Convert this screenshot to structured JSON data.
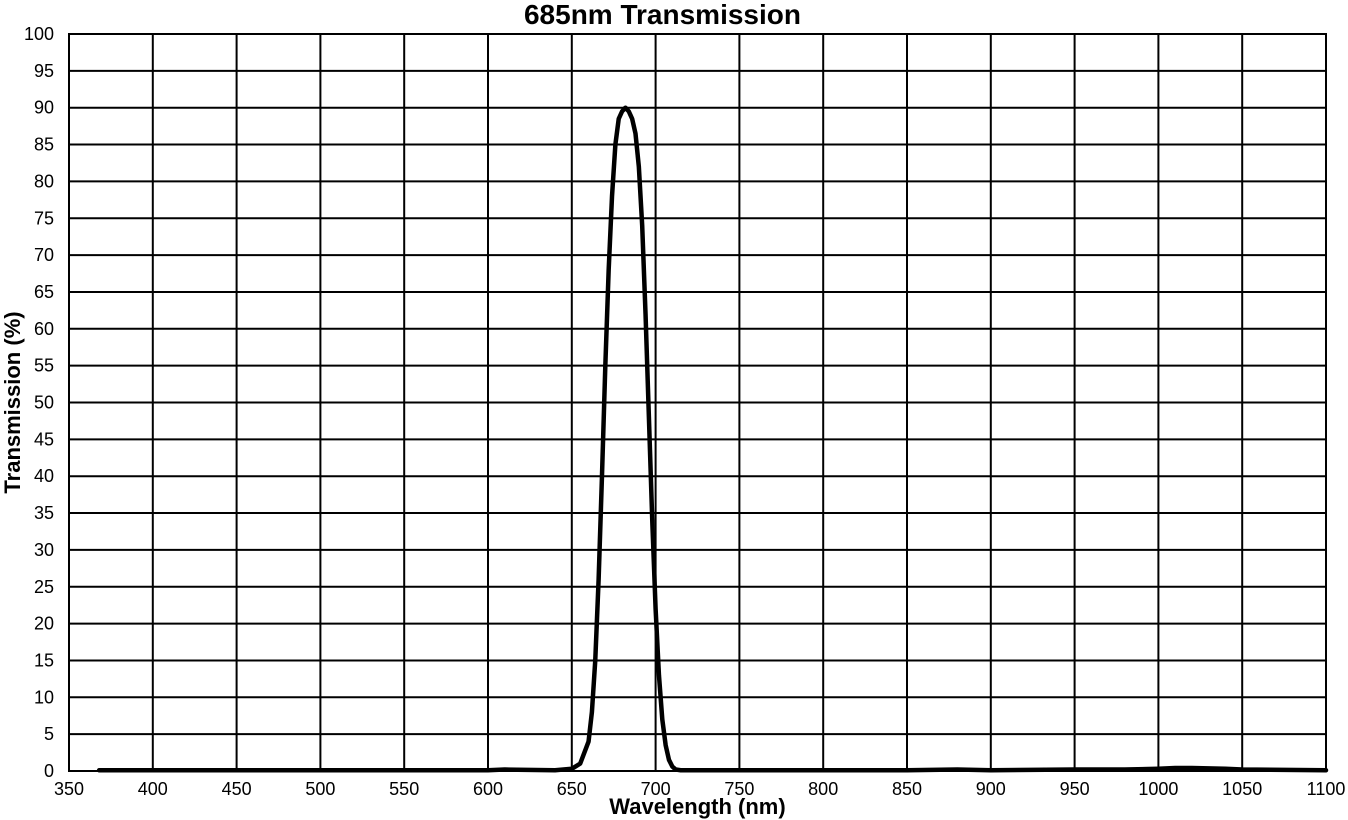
{
  "chart_data": {
    "type": "line",
    "title": "685nm Transmission",
    "xlabel": "Wavelength (nm)",
    "ylabel": "Transmission (%)",
    "xlim": [
      350,
      1100
    ],
    "ylim": [
      0,
      100
    ],
    "x_ticks": [
      "350",
      "400",
      "450",
      "500",
      "550",
      "600",
      "650",
      "700",
      "750",
      "800",
      "850",
      "900",
      "950",
      "1000",
      "1050",
      "1100"
    ],
    "y_ticks": [
      "0",
      "5",
      "10",
      "15",
      "20",
      "25",
      "30",
      "35",
      "40",
      "45",
      "50",
      "55",
      "60",
      "65",
      "70",
      "75",
      "80",
      "85",
      "90",
      "95",
      "100"
    ],
    "grid": true,
    "legend": "none",
    "line_color": "#000000",
    "series": [
      {
        "x": [
          368,
          400,
          450,
          500,
          550,
          600,
          610,
          640,
          650,
          655,
          660,
          662,
          664,
          666,
          668,
          670,
          672,
          674,
          676,
          678,
          680,
          682,
          684,
          685,
          686,
          688,
          690,
          692,
          694,
          696,
          698,
          700,
          702,
          704,
          706,
          708,
          710,
          712,
          715,
          720,
          750,
          800,
          850,
          880,
          900,
          950,
          980,
          1000,
          1010,
          1020,
          1040,
          1050,
          1100
        ],
        "values": [
          0.1,
          0.1,
          0.1,
          0.1,
          0.1,
          0.1,
          0.2,
          0.1,
          0.3,
          1.0,
          4.0,
          8.0,
          15.0,
          26.0,
          40.0,
          55.0,
          68.0,
          78.0,
          85.0,
          88.5,
          89.5,
          90.0,
          89.5,
          89.0,
          88.5,
          86.5,
          82.0,
          74.0,
          62.0,
          48.0,
          34.0,
          22.0,
          13.0,
          7.0,
          3.5,
          1.5,
          0.6,
          0.2,
          0.1,
          0.1,
          0.1,
          0.1,
          0.1,
          0.2,
          0.1,
          0.2,
          0.2,
          0.3,
          0.4,
          0.4,
          0.3,
          0.2,
          0.1
        ]
      }
    ]
  }
}
